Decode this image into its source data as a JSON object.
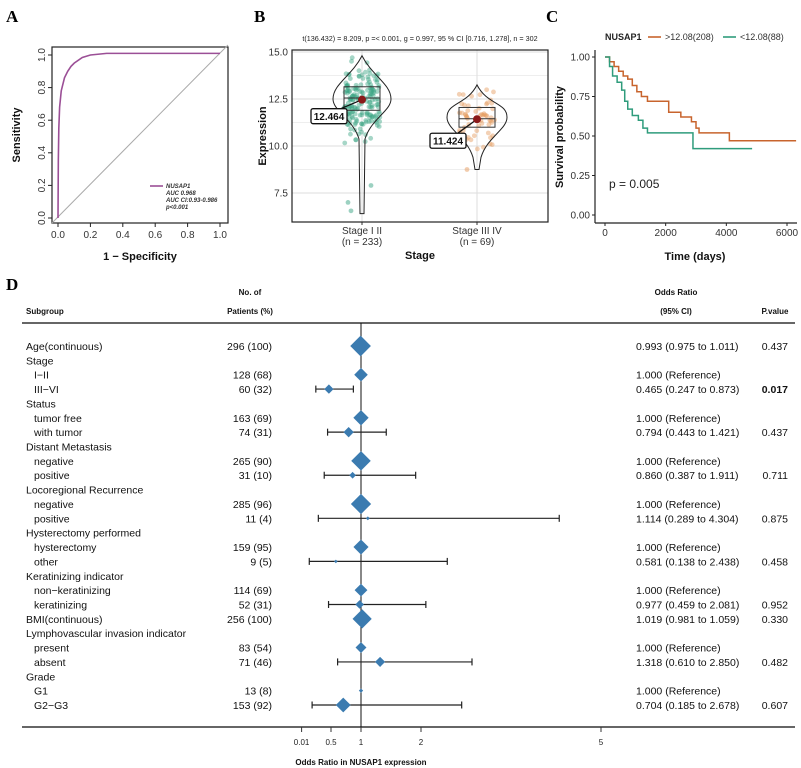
{
  "chart_data": [
    {
      "panel": "A",
      "type": "line",
      "xlabel": "1 − Specificity",
      "ylabel": "Sensitivity",
      "xlim": [
        0,
        1
      ],
      "ylim": [
        0,
        1
      ],
      "xticks": [
        "0.0",
        "0.2",
        "0.4",
        "0.6",
        "0.8",
        "1.0"
      ],
      "yticks": [
        "0.0",
        "0.2",
        "0.4",
        "0.6",
        "0.8",
        "1.0"
      ],
      "series": [
        {
          "name": "NUSAP1",
          "color": "#9b4f96",
          "x": [
            0,
            0.002,
            0.005,
            0.01,
            0.02,
            0.04,
            0.06,
            0.08,
            0.1,
            0.15,
            0.2,
            0.3,
            0.4,
            1.0
          ],
          "y": [
            0,
            0.35,
            0.55,
            0.68,
            0.78,
            0.86,
            0.9,
            0.93,
            0.95,
            0.985,
            1.0,
            1.01,
            1.01,
            1.01
          ]
        }
      ],
      "legend": [
        "NUSAP1",
        "AUC 0.968",
        "AUC CI:0.93-0.986",
        "p<0.001"
      ],
      "legend_position": "bottom-right",
      "reference_line": "diagonal"
    },
    {
      "panel": "B",
      "type": "violin",
      "subtitle": "t(136.432) = 8.209, p =< 0.001, g = 0.997, 95 % CI [0.716, 1.278], n = 302",
      "xlabel": "Stage",
      "ylabel": "Expression",
      "ylim": [
        6.2,
        15.2
      ],
      "yticks": [
        "7.5",
        "10.0",
        "12.5",
        "15.0"
      ],
      "grid": true,
      "categories": [
        {
          "label": "Stage  I II",
          "n_label": "(n = 233)",
          "mean": 12.464,
          "mean_label": "12.464",
          "q1": 11.9,
          "median": 12.55,
          "q3": 13.15,
          "min": 6.4,
          "max": 14.8,
          "color": "#3aa383"
        },
        {
          "label": "Stage  III IV",
          "n_label": "(n = 69)",
          "mean": 11.424,
          "mean_label": "11.424",
          "q1": 11.0,
          "median": 11.45,
          "q3": 12.05,
          "min": 8.75,
          "max": 13.25,
          "color": "#e59a5b"
        }
      ]
    },
    {
      "panel": "C",
      "type": "line",
      "xlabel": "Time (days)",
      "ylabel": "Survival probability",
      "xlim": [
        -300,
        6300
      ],
      "ylim": [
        0,
        1
      ],
      "xticks": [
        "0",
        "2000",
        "4000",
        "6000"
      ],
      "yticks": [
        "0.00",
        "0.25",
        "0.50",
        "0.75",
        "1.00"
      ],
      "legend_title": "NUSAP1",
      "legend_position": "top",
      "annotation": "p = 0.005",
      "series": [
        {
          "name": ">12.08(208)",
          "color": "#c8642d",
          "x": [
            0,
            150,
            300,
            450,
            600,
            750,
            900,
            1050,
            1200,
            1400,
            2050,
            2100,
            2500,
            2850,
            3000,
            3100,
            4100,
            4100,
            6300
          ],
          "y": [
            1,
            0.97,
            0.94,
            0.91,
            0.88,
            0.86,
            0.82,
            0.78,
            0.75,
            0.72,
            0.72,
            0.65,
            0.62,
            0.59,
            0.55,
            0.52,
            0.52,
            0.47,
            0.47
          ]
        },
        {
          "name": "<12.08(88)",
          "color": "#2f9c7c",
          "x": [
            0,
            150,
            250,
            400,
            550,
            650,
            750,
            900,
            1100,
            1250,
            1400,
            2900,
            2900,
            4850
          ],
          "y": [
            1,
            0.94,
            0.88,
            0.84,
            0.79,
            0.72,
            0.67,
            0.63,
            0.6,
            0.55,
            0.52,
            0.52,
            0.42,
            0.42
          ]
        }
      ]
    },
    {
      "panel": "D",
      "type": "forest",
      "headers": {
        "subgroup": "Subgroup",
        "patients_1": "No. of",
        "patients_2": "Patients (%)",
        "or_1": "Odds Ratio",
        "or_2": "(95% CI)",
        "p": "P.value"
      },
      "xlabel": "Odds Ratio in NUSAP1 expression",
      "xticks": [
        0.01,
        0.5,
        1,
        2,
        5
      ],
      "reference": 1,
      "color": "#3b7bb0",
      "rows": [
        {
          "label": "Age(continuous)",
          "indent": false,
          "n": "296 (100)",
          "count": 296,
          "or": 0.993,
          "lo": 0.975,
          "hi": 1.011,
          "text": "0.993 (0.975 to 1.011)",
          "p": "0.437"
        },
        {
          "label": "Stage",
          "indent": false
        },
        {
          "label": "I−II",
          "indent": true,
          "n": "128 (68)",
          "count": 128,
          "or": 1,
          "text": "1.000 (Reference)",
          "p": ""
        },
        {
          "label": "III−VI",
          "indent": true,
          "n": "60 (32)",
          "count": 60,
          "or": 0.465,
          "lo": 0.247,
          "hi": 0.873,
          "text": "0.465 (0.247 to 0.873)",
          "p": "0.017",
          "bold": true
        },
        {
          "label": "Status",
          "indent": false
        },
        {
          "label": "tumor free",
          "indent": true,
          "n": "163 (69)",
          "count": 163,
          "or": 1,
          "text": "1.000 (Reference)",
          "p": ""
        },
        {
          "label": "with tumor",
          "indent": true,
          "n": "74 (31)",
          "count": 74,
          "or": 0.794,
          "lo": 0.443,
          "hi": 1.421,
          "text": "0.794 (0.443 to 1.421)",
          "p": "0.437"
        },
        {
          "label": "Distant Metastasis",
          "indent": false
        },
        {
          "label": "negative",
          "indent": true,
          "n": "265 (90)",
          "count": 265,
          "or": 1,
          "text": "1.000 (Reference)",
          "p": ""
        },
        {
          "label": "positive",
          "indent": true,
          "n": "31 (10)",
          "count": 31,
          "or": 0.86,
          "lo": 0.387,
          "hi": 1.911,
          "text": "0.860 (0.387 to 1.911)",
          "p": "0.711"
        },
        {
          "label": "Locoregional Recurrence",
          "indent": false
        },
        {
          "label": "negative",
          "indent": true,
          "n": "285 (96)",
          "count": 285,
          "or": 1,
          "text": "1.000 (Reference)",
          "p": ""
        },
        {
          "label": "positive",
          "indent": true,
          "n": "11 (4)",
          "count": 11,
          "or": 1.114,
          "lo": 0.289,
          "hi": 4.304,
          "text": "1.114 (0.289 to 4.304)",
          "p": "0.875"
        },
        {
          "label": "Hysterectomy performed",
          "indent": false
        },
        {
          "label": "hysterectomy",
          "indent": true,
          "n": "159 (95)",
          "count": 159,
          "or": 1,
          "text": "1.000 (Reference)",
          "p": ""
        },
        {
          "label": "other",
          "indent": true,
          "n": "9 (5)",
          "count": 9,
          "or": 0.581,
          "lo": 0.138,
          "hi": 2.438,
          "text": "0.581 (0.138 to 2.438)",
          "p": "0.458"
        },
        {
          "label": "Keratinizing indicator",
          "indent": false
        },
        {
          "label": "non−keratinizing",
          "indent": true,
          "n": "114 (69)",
          "count": 114,
          "or": 1,
          "text": "1.000 (Reference)",
          "p": ""
        },
        {
          "label": "keratinizing",
          "indent": true,
          "n": "52 (31)",
          "count": 52,
          "or": 0.977,
          "lo": 0.459,
          "hi": 2.081,
          "text": "0.977 (0.459 to 2.081)",
          "p": "0.952"
        },
        {
          "label": "BMI(continuous)",
          "indent": false,
          "n": "256 (100)",
          "count": 256,
          "or": 1.019,
          "lo": 0.981,
          "hi": 1.059,
          "text": "1.019 (0.981 to 1.059)",
          "p": "0.330"
        },
        {
          "label": "Lymphovascular invasion indicator",
          "indent": false
        },
        {
          "label": "present",
          "indent": true,
          "n": "83 (54)",
          "count": 83,
          "or": 1,
          "text": "1.000 (Reference)",
          "p": ""
        },
        {
          "label": "absent",
          "indent": true,
          "n": "71 (46)",
          "count": 71,
          "or": 1.318,
          "lo": 0.61,
          "hi": 2.85,
          "text": "1.318 (0.610 to 2.850)",
          "p": "0.482"
        },
        {
          "label": "Grade",
          "indent": false
        },
        {
          "label": "G1",
          "indent": true,
          "n": "13 (8)",
          "count": 13,
          "or": 1,
          "text": "1.000 (Reference)",
          "p": ""
        },
        {
          "label": "G2−G3",
          "indent": true,
          "n": "153 (92)",
          "count": 153,
          "or": 0.704,
          "lo": 0.185,
          "hi": 2.678,
          "text": "0.704 (0.185 to 2.678)",
          "p": "0.607"
        }
      ]
    }
  ],
  "panel_labels": [
    "A",
    "B",
    "C",
    "D"
  ]
}
